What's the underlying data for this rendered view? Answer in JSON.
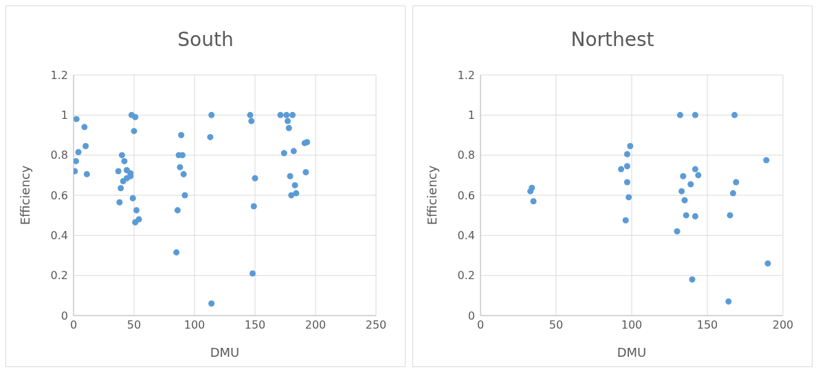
{
  "chart_data": [
    {
      "type": "scatter",
      "title": "South",
      "xlabel": "DMU",
      "ylabel": "Efficiency",
      "xlim": [
        0,
        250
      ],
      "xticks": [
        0,
        50,
        100,
        150,
        200,
        250
      ],
      "ylim": [
        0,
        1.2
      ],
      "yticks": [
        0,
        0.2,
        0.4,
        0.6,
        0.8,
        1,
        1.2
      ],
      "grid": true,
      "marker": "circle",
      "legend": false,
      "series": [
        {
          "color": "#5b9bd5",
          "x": [
            2.4,
            9,
            10,
            4,
            2,
            1,
            11,
            37,
            40,
            42,
            44,
            47,
            44,
            47,
            41,
            39,
            38,
            46,
            48,
            51,
            50,
            49,
            52,
            54,
            51,
            89,
            87,
            90,
            88,
            91,
            92,
            86,
            85,
            114,
            113,
            114,
            146,
            147,
            150,
            149,
            148,
            171,
            176,
            181,
            177,
            178,
            174,
            182,
            179,
            183,
            184,
            180,
            192,
            193,
            191
          ],
          "values": [
            0.98,
            0.94,
            0.845,
            0.815,
            0.77,
            0.72,
            0.705,
            0.72,
            0.8,
            0.77,
            0.725,
            0.71,
            0.685,
            0.695,
            0.67,
            0.635,
            0.565,
            null,
            1,
            0.99,
            0.92,
            0.585,
            0.525,
            0.48,
            0.465,
            0.9,
            0.8,
            0.8,
            0.74,
            0.705,
            0.6,
            0.525,
            0.315,
            1,
            0.89,
            0.06,
            1,
            0.97,
            0.685,
            0.545,
            0.21,
            1,
            1,
            1,
            0.97,
            0.935,
            0.81,
            0.82,
            0.695,
            0.65,
            0.61,
            0.6,
            0.715,
            0.865,
            0.86
          ]
        }
      ]
    },
    {
      "type": "scatter",
      "title": "Northest",
      "xlabel": "DMU",
      "ylabel": "Efficiency",
      "xlim": [
        0,
        200
      ],
      "xticks": [
        0,
        50,
        100,
        150,
        200
      ],
      "ylim": [
        0,
        1.2
      ],
      "yticks": [
        0,
        0.2,
        0.4,
        0.6,
        0.8,
        1,
        1.2
      ],
      "grid": true,
      "marker": "circle",
      "legend": false,
      "series": [
        {
          "color": "#5b9bd5",
          "x": [
            34,
            33,
            35,
            93,
            96,
            97,
            97,
            99,
            97,
            98,
            96,
            132,
            142,
            168,
            133,
            134,
            135,
            136,
            130,
            139,
            142,
            144,
            142,
            140,
            169,
            167,
            165,
            164,
            189,
            190
          ],
          "values": [
            0.637,
            0.62,
            0.57,
            0.73,
            null,
            0.745,
            0.805,
            0.845,
            0.665,
            0.59,
            0.475,
            1,
            1,
            1,
            0.62,
            0.695,
            0.575,
            0.5,
            0.42,
            0.655,
            0.73,
            0.7,
            0.495,
            0.18,
            0.665,
            0.61,
            0.5,
            0.07,
            0.775,
            0.26
          ]
        }
      ]
    }
  ]
}
